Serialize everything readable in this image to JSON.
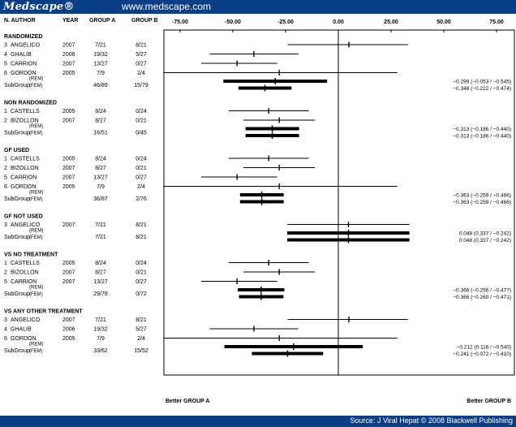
{
  "header": {
    "brand": "Medscape®",
    "site": "www.medscape.com"
  },
  "footer": {
    "source": "Source: J Viral Hepat © 2008 Blackwell Publishing"
  },
  "columns": {
    "n_author": "N. AUTHOR",
    "year": "YEAR",
    "group_a": "GROUP A",
    "group_b": "GROUP B"
  },
  "bottom_labels": {
    "left": "Better GROUP A",
    "right": "Better GROUP B"
  },
  "colors": {
    "header_bg": "#0a3f88",
    "ink": "#000000"
  },
  "chart_data": {
    "type": "forest",
    "x_ticks": [
      "-75.00",
      "-50.00",
      "-25.00",
      "0.00",
      "25.00",
      "50.00",
      "75.00"
    ],
    "x_tick_values": [
      -75,
      -50,
      -25,
      0,
      25,
      50,
      75
    ],
    "xlim": [
      -90,
      100
    ],
    "reference_line": 0,
    "sections": [
      {
        "title": "RANDOMIZED",
        "studies": [
          {
            "id": "3",
            "author": "ANGELICO",
            "year": "2007",
            "group_a": "7/21",
            "group_b": "8/21",
            "est": 5,
            "lo": -24,
            "hi": 33
          },
          {
            "id": "4",
            "author": "GHALIB",
            "year": "2006",
            "group_a": "19/32",
            "group_b": "5/27",
            "est": -40,
            "lo": -61,
            "hi": -19
          },
          {
            "id": "5",
            "author": "CARRION",
            "year": "2007",
            "group_a": "13/27",
            "group_b": "0/27",
            "est": -48,
            "lo": -65,
            "hi": -29
          },
          {
            "id": "6",
            "author": "GORDON",
            "year": "2005",
            "group_a": "7/9",
            "group_b": "2/4",
            "est": -28,
            "lo": -83,
            "hi": 28
          }
        ],
        "subgroup": {
          "label": "SubGroup",
          "group_a": "46/89",
          "group_b": "15/79",
          "rows": [
            {
              "model": "(REM)",
              "est": -29.9,
              "lo": -54.5,
              "hi": -5.3,
              "text": "−0.299 (−0.053 / −0.545)"
            },
            {
              "model": "(FEM)",
              "est": -34.8,
              "lo": -47.4,
              "hi": -22.2,
              "text": "−0.348 (−0.222 / −0.474)"
            }
          ]
        }
      },
      {
        "title": "NON RANDOMIZED",
        "studies": [
          {
            "id": "1",
            "author": "CASTELLS",
            "year": "2005",
            "group_a": "8/24",
            "group_b": "0/24",
            "est": -33,
            "lo": -52,
            "hi": -14
          },
          {
            "id": "2",
            "author": "BIZOLLON",
            "year": "2007",
            "group_a": "8/27",
            "group_b": "0/21",
            "est": -28,
            "lo": -45,
            "hi": -11
          }
        ],
        "subgroup": {
          "label": "SubGroup",
          "group_a": "16/51",
          "group_b": "0/45",
          "rows": [
            {
              "model": "(REM)",
              "est": -31.3,
              "lo": -44.0,
              "hi": -18.6,
              "text": "−0.313 (−0.186 / −0.440)"
            },
            {
              "model": "(FEM)",
              "est": -31.3,
              "lo": -44.0,
              "hi": -18.6,
              "text": "−0.313 (−0.186 / −0.440)"
            }
          ]
        }
      },
      {
        "title": "GF USED",
        "studies": [
          {
            "id": "1",
            "author": "CASTELLS",
            "year": "2005",
            "group_a": "8/24",
            "group_b": "0/24",
            "est": -33,
            "lo": -52,
            "hi": -14
          },
          {
            "id": "2",
            "author": "BIZOLLON",
            "year": "2007",
            "group_a": "8/27",
            "group_b": "0/21",
            "est": -28,
            "lo": -45,
            "hi": -11
          },
          {
            "id": "5",
            "author": "CARRION",
            "year": "2007",
            "group_a": "13/27",
            "group_b": "0/27",
            "est": -48,
            "lo": -65,
            "hi": -29
          },
          {
            "id": "6",
            "author": "GORDON",
            "year": "2005",
            "group_a": "7/9",
            "group_b": "2/4",
            "est": -28,
            "lo": -83,
            "hi": 28
          }
        ],
        "subgroup": {
          "label": "SubGroup",
          "group_a": "36/87",
          "group_b": "2/76",
          "rows": [
            {
              "model": "(REM)",
              "est": -36.3,
              "lo": -46.6,
              "hi": -25.9,
              "text": "−0.363 (−0.259 / −0.466)"
            },
            {
              "model": "(FEM)",
              "est": -36.3,
              "lo": -46.6,
              "hi": -25.9,
              "text": "−0.363 (−0.259 / −0.466)"
            }
          ]
        }
      },
      {
        "title": "GF NOT USED",
        "studies": [
          {
            "id": "3",
            "author": "ANGELICO",
            "year": "2007",
            "group_a": "7/21",
            "group_b": "8/21",
            "est": 4.8,
            "lo": -24.2,
            "hi": 33.7
          }
        ],
        "subgroup": {
          "label": "SubGroup",
          "group_a": "7/21",
          "group_b": "8/21",
          "rows": [
            {
              "model": "(REM)",
              "est": 4.8,
              "lo": -24.2,
              "hi": 33.7,
              "text": "0.048 (0.337 / −0.242)"
            },
            {
              "model": "(FEM)",
              "est": 4.8,
              "lo": -24.2,
              "hi": 33.7,
              "text": "0.048 (0.337 / −0.242)"
            }
          ]
        }
      },
      {
        "title": "VS NO TREATMENT",
        "studies": [
          {
            "id": "1",
            "author": "CASTELLS",
            "year": "2005",
            "group_a": "8/24",
            "group_b": "0/24",
            "est": -33,
            "lo": -52,
            "hi": -14
          },
          {
            "id": "2",
            "author": "BIZOLLON",
            "year": "2007",
            "group_a": "8/27",
            "group_b": "0/21",
            "est": -28,
            "lo": -45,
            "hi": -11
          },
          {
            "id": "5",
            "author": "CARRION",
            "year": "2007",
            "group_a": "13/27",
            "group_b": "0/27",
            "est": -48,
            "lo": -65,
            "hi": -29
          }
        ],
        "subgroup": {
          "label": "SubGroup",
          "group_a": "29/78",
          "group_b": "0/72",
          "rows": [
            {
              "model": "(REM)",
              "est": -36.6,
              "lo": -47.7,
              "hi": -25.6,
              "text": "−0.366 (−0.256 / −0.477)"
            },
            {
              "model": "(FEM)",
              "est": -36.6,
              "lo": -47.1,
              "hi": -26.0,
              "text": "−0.366 (−0.260 / −0.471)"
            }
          ]
        }
      },
      {
        "title": "VS ANY OTHER TREATMENT",
        "studies": [
          {
            "id": "3",
            "author": "ANGELICO",
            "year": "2007",
            "group_a": "7/21",
            "group_b": "8/21",
            "est": 5,
            "lo": -24,
            "hi": 33
          },
          {
            "id": "4",
            "author": "GHALIB",
            "year": "2006",
            "group_a": "19/32",
            "group_b": "5/27",
            "est": -40,
            "lo": -61,
            "hi": -19
          },
          {
            "id": "6",
            "author": "GORDON",
            "year": "2005",
            "group_a": "7/9",
            "group_b": "2/4",
            "est": -28,
            "lo": -83,
            "hi": 28
          }
        ],
        "subgroup": {
          "label": "SubGroup",
          "group_a": "33/62",
          "group_b": "15/52",
          "rows": [
            {
              "model": "(REM)",
              "est": -21.2,
              "lo": -54.0,
              "hi": 11.6,
              "text": "−0.212 (0.116 / −0.540)"
            },
            {
              "model": "(FEM)",
              "est": -24.1,
              "lo": -41.0,
              "hi": -7.2,
              "text": "−0.241 (−0.072 / −0.410)"
            }
          ]
        }
      }
    ]
  }
}
